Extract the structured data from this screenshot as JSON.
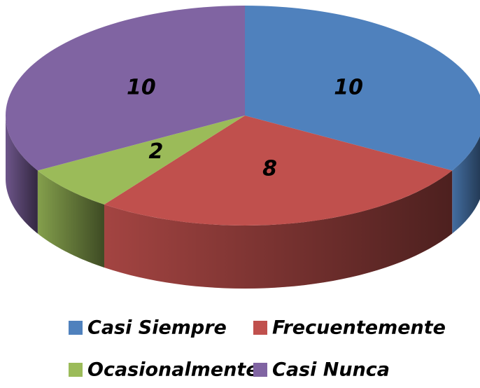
{
  "chart_data": {
    "type": "pie",
    "categories": [
      "Casi Siempre",
      "Frecuentemente",
      "Ocasionalmente",
      "Casi Nunca"
    ],
    "values": [
      10,
      8,
      2,
      10
    ],
    "colors": [
      "#4f81bd",
      "#c0504d",
      "#9bbb59",
      "#8064a2"
    ],
    "legend": "bottom"
  }
}
